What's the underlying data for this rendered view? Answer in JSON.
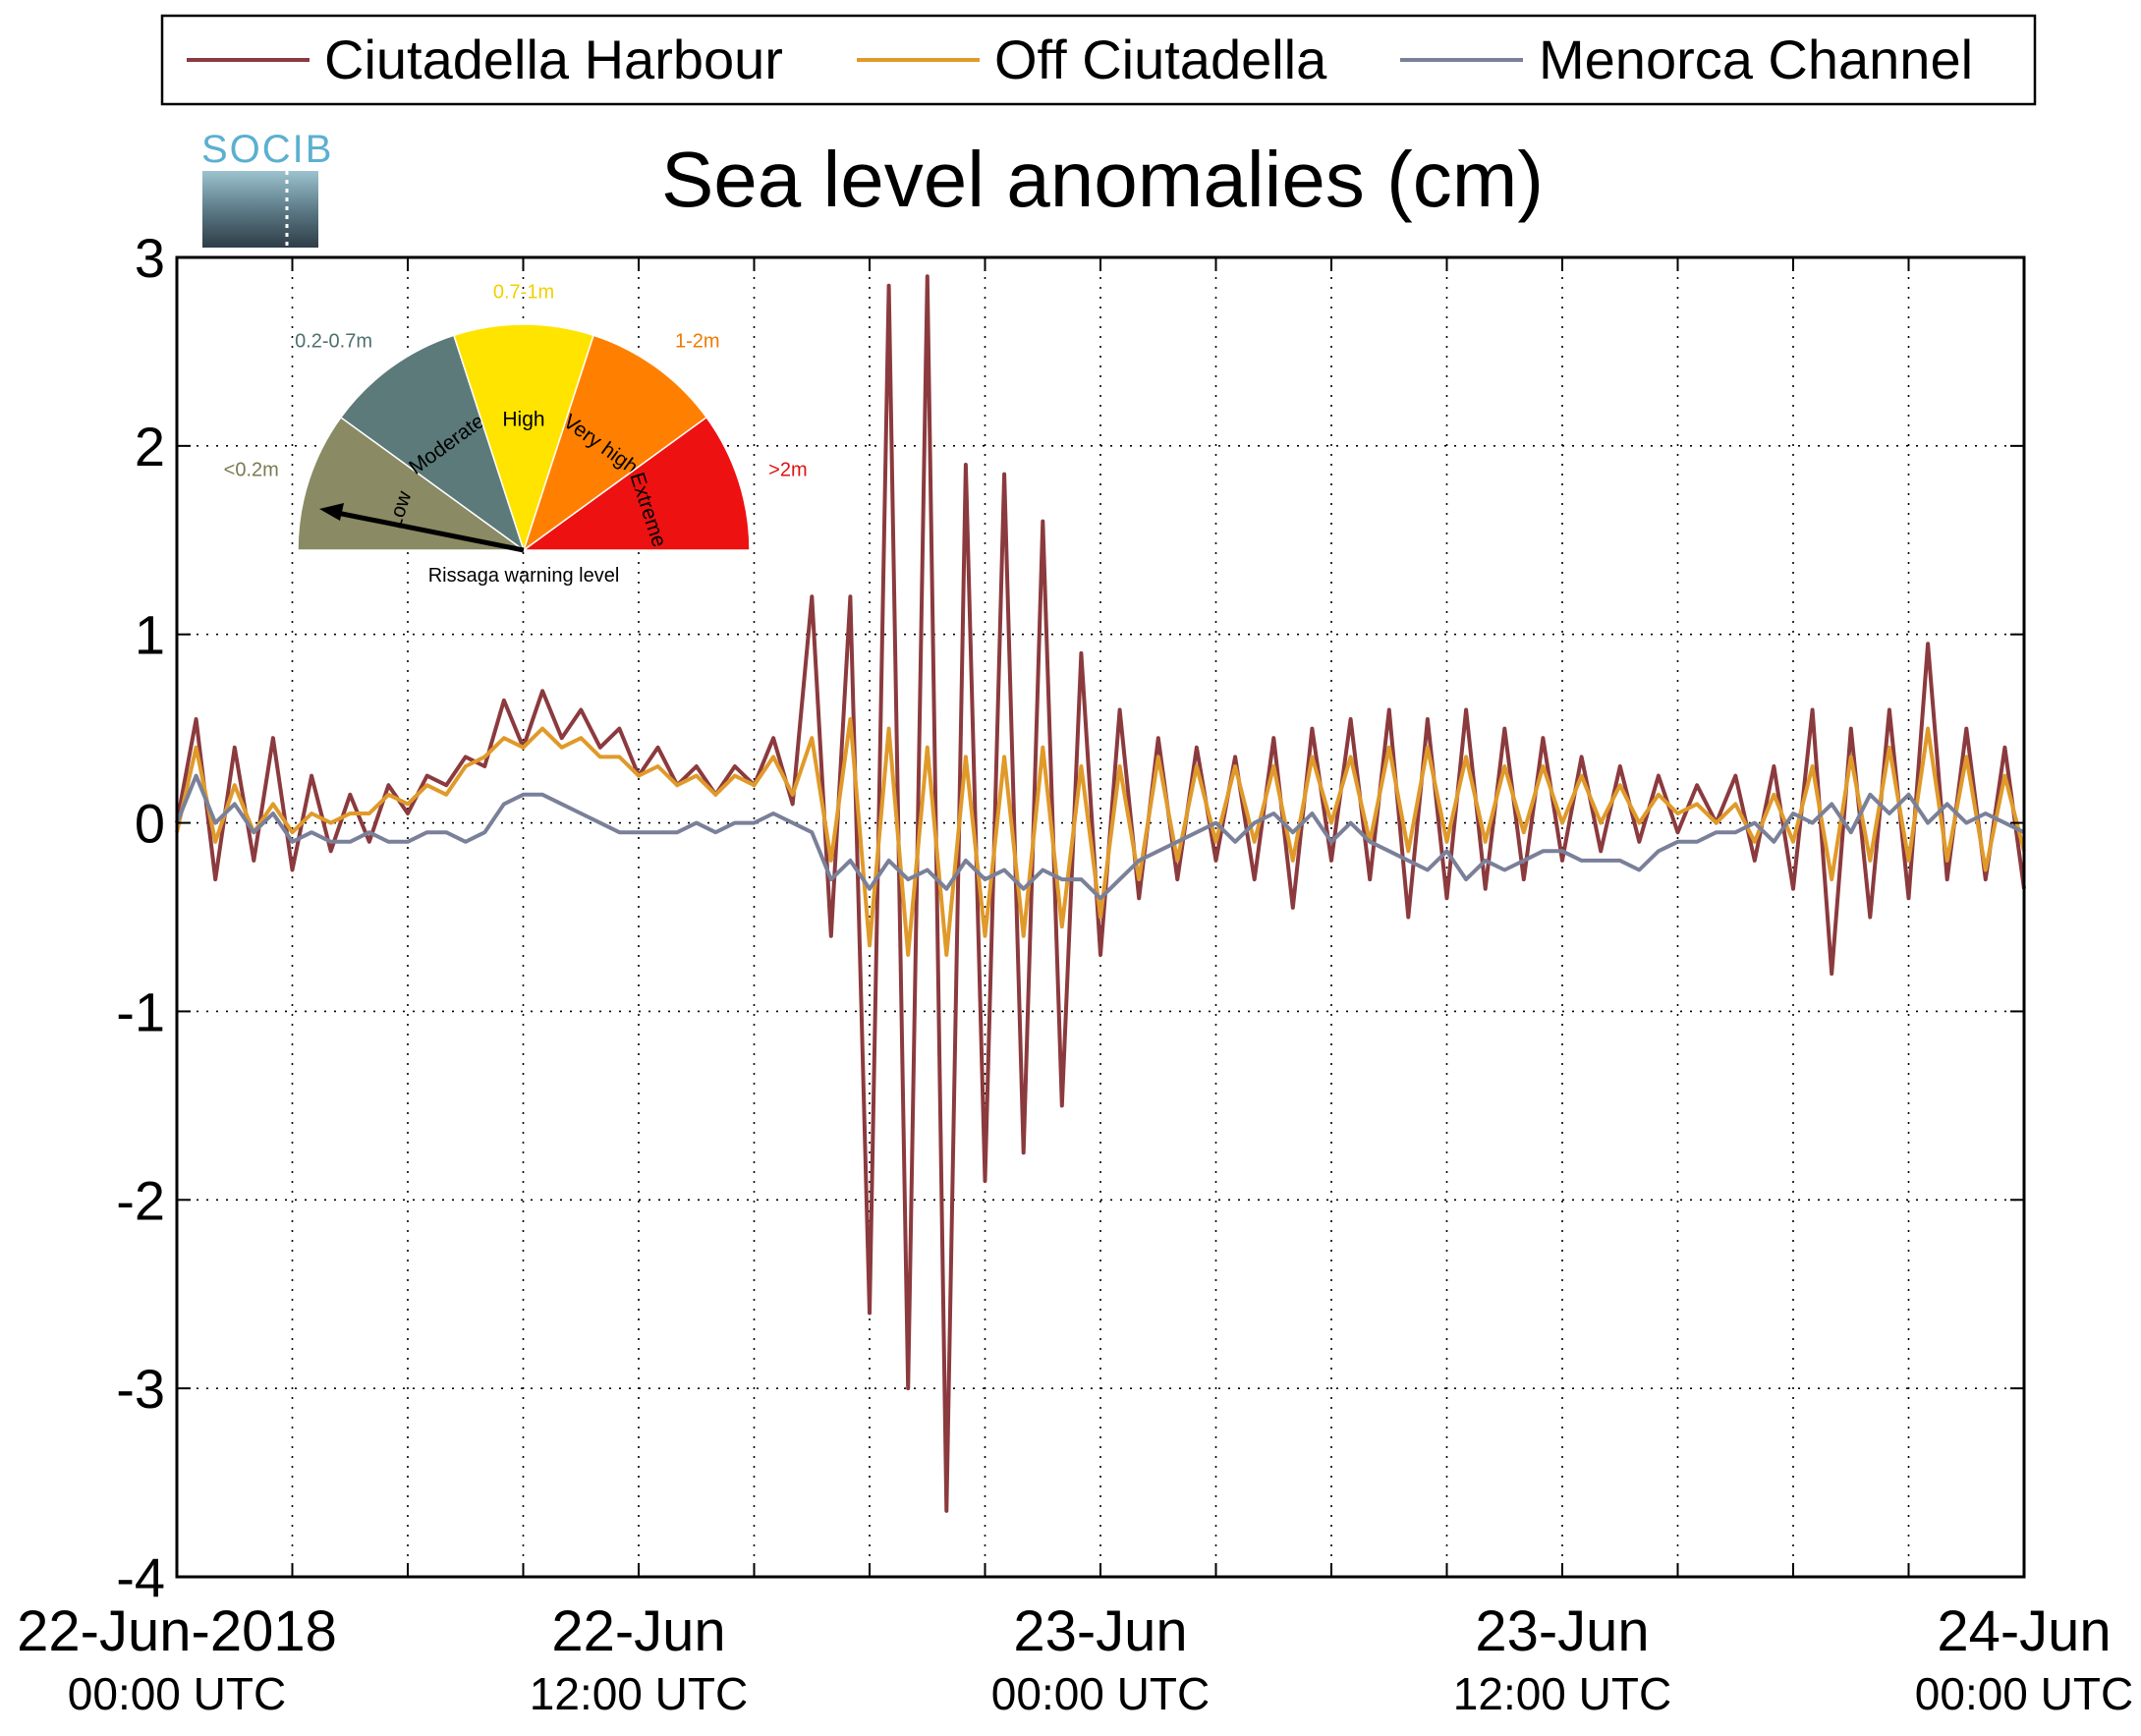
{
  "chart_data": {
    "type": "line",
    "title": "Sea level anomalies (cm)",
    "xlabel": "",
    "ylabel": "",
    "ylim": [
      -4,
      3
    ],
    "yticks": [
      3,
      2,
      1,
      0,
      -1,
      -2,
      -3,
      -4
    ],
    "ytick_labels": [
      "3",
      "2",
      "1",
      "0",
      "-1",
      "-2",
      "-3",
      "-4"
    ],
    "x_unit": "hours since 22-Jun-2018 00:00 UTC",
    "xlim": [
      0,
      48
    ],
    "xticks": [
      0,
      3,
      6,
      9,
      12,
      15,
      18,
      21,
      24,
      27,
      30,
      33,
      36,
      39,
      42,
      45,
      48
    ],
    "xtick_labels": [
      {
        "x": 0,
        "date": "22-Jun-2018",
        "time": "00:00 UTC"
      },
      {
        "x": 12,
        "date": "22-Jun",
        "time": "12:00 UTC"
      },
      {
        "x": 24,
        "date": "23-Jun",
        "time": "00:00 UTC"
      },
      {
        "x": 36,
        "date": "23-Jun",
        "time": "12:00 UTC"
      },
      {
        "x": 48,
        "date": "24-Jun",
        "time": "00:00 UTC"
      }
    ],
    "grid": true,
    "legend_position": "top",
    "series": [
      {
        "name": "Ciutadella Harbour",
        "color": "#8b3a3e",
        "x": [
          0,
          0.5,
          1,
          1.5,
          2,
          2.5,
          3,
          3.5,
          4,
          4.5,
          5,
          5.5,
          6,
          6.5,
          7,
          7.5,
          8,
          8.5,
          9,
          9.5,
          10,
          10.5,
          11,
          11.5,
          12,
          12.5,
          13,
          13.5,
          14,
          14.5,
          15,
          15.5,
          16,
          16.5,
          17,
          17.5,
          18,
          18.5,
          19,
          19.5,
          20,
          20.5,
          21,
          21.5,
          22,
          22.5,
          23,
          23.5,
          24,
          24.5,
          25,
          25.5,
          26,
          26.5,
          27,
          27.5,
          28,
          28.5,
          29,
          29.5,
          30,
          30.5,
          31,
          31.5,
          32,
          32.5,
          33,
          33.5,
          34,
          34.5,
          35,
          35.5,
          36,
          36.5,
          37,
          37.5,
          38,
          38.5,
          39,
          39.5,
          40,
          40.5,
          41,
          41.5,
          42,
          42.5,
          43,
          43.5,
          44,
          44.5,
          45,
          45.5,
          46,
          46.5,
          47,
          47.5,
          48
        ],
        "values": [
          0.0,
          0.55,
          -0.3,
          0.4,
          -0.2,
          0.45,
          -0.25,
          0.25,
          -0.15,
          0.15,
          -0.1,
          0.2,
          0.05,
          0.25,
          0.2,
          0.35,
          0.3,
          0.65,
          0.4,
          0.7,
          0.45,
          0.6,
          0.4,
          0.5,
          0.25,
          0.4,
          0.2,
          0.3,
          0.15,
          0.3,
          0.2,
          0.45,
          0.1,
          1.2,
          -0.6,
          1.2,
          -2.6,
          2.85,
          -3.0,
          2.9,
          -3.65,
          1.9,
          -1.9,
          1.85,
          -1.75,
          1.6,
          -1.5,
          0.9,
          -0.7,
          0.6,
          -0.4,
          0.45,
          -0.3,
          0.4,
          -0.2,
          0.35,
          -0.3,
          0.45,
          -0.45,
          0.5,
          -0.2,
          0.55,
          -0.3,
          0.6,
          -0.5,
          0.55,
          -0.4,
          0.6,
          -0.35,
          0.5,
          -0.3,
          0.45,
          -0.2,
          0.35,
          -0.15,
          0.3,
          -0.1,
          0.25,
          -0.05,
          0.2,
          0.0,
          0.25,
          -0.2,
          0.3,
          -0.35,
          0.6,
          -0.8,
          0.5,
          -0.5,
          0.6,
          -0.4,
          0.95,
          -0.3,
          0.5,
          -0.3,
          0.4,
          -0.35
        ]
      },
      {
        "name": "Off Ciutadella",
        "color": "#e09a2a",
        "x": [
          0,
          0.5,
          1,
          1.5,
          2,
          2.5,
          3,
          3.5,
          4,
          4.5,
          5,
          5.5,
          6,
          6.5,
          7,
          7.5,
          8,
          8.5,
          9,
          9.5,
          10,
          10.5,
          11,
          11.5,
          12,
          12.5,
          13,
          13.5,
          14,
          14.5,
          15,
          15.5,
          16,
          16.5,
          17,
          17.5,
          18,
          18.5,
          19,
          19.5,
          20,
          20.5,
          21,
          21.5,
          22,
          22.5,
          23,
          23.5,
          24,
          24.5,
          25,
          25.5,
          26,
          26.5,
          27,
          27.5,
          28,
          28.5,
          29,
          29.5,
          30,
          30.5,
          31,
          31.5,
          32,
          32.5,
          33,
          33.5,
          34,
          34.5,
          35,
          35.5,
          36,
          36.5,
          37,
          37.5,
          38,
          38.5,
          39,
          39.5,
          40,
          40.5,
          41,
          41.5,
          42,
          42.5,
          43,
          43.5,
          44,
          44.5,
          45,
          45.5,
          46,
          46.5,
          47,
          47.5,
          48
        ],
        "values": [
          -0.05,
          0.4,
          -0.1,
          0.2,
          -0.05,
          0.1,
          -0.05,
          0.05,
          0.0,
          0.05,
          0.05,
          0.15,
          0.1,
          0.2,
          0.15,
          0.3,
          0.35,
          0.45,
          0.4,
          0.5,
          0.4,
          0.45,
          0.35,
          0.35,
          0.25,
          0.3,
          0.2,
          0.25,
          0.15,
          0.25,
          0.2,
          0.35,
          0.15,
          0.45,
          -0.2,
          0.55,
          -0.65,
          0.5,
          -0.7,
          0.4,
          -0.7,
          0.35,
          -0.6,
          0.35,
          -0.6,
          0.4,
          -0.55,
          0.3,
          -0.5,
          0.3,
          -0.3,
          0.35,
          -0.2,
          0.3,
          -0.1,
          0.3,
          -0.1,
          0.3,
          -0.2,
          0.35,
          0.0,
          0.35,
          -0.1,
          0.4,
          -0.15,
          0.4,
          -0.1,
          0.35,
          -0.1,
          0.3,
          -0.05,
          0.3,
          0.0,
          0.25,
          0.0,
          0.2,
          0.0,
          0.15,
          0.05,
          0.1,
          0.0,
          0.1,
          -0.1,
          0.15,
          -0.1,
          0.3,
          -0.3,
          0.35,
          -0.2,
          0.4,
          -0.2,
          0.5,
          -0.2,
          0.35,
          -0.25,
          0.25,
          -0.15
        ]
      },
      {
        "name": "Menorca Channel",
        "color": "#7a8099",
        "x": [
          0,
          0.5,
          1,
          1.5,
          2,
          2.5,
          3,
          3.5,
          4,
          4.5,
          5,
          5.5,
          6,
          6.5,
          7,
          7.5,
          8,
          8.5,
          9,
          9.5,
          10,
          10.5,
          11,
          11.5,
          12,
          12.5,
          13,
          13.5,
          14,
          14.5,
          15,
          15.5,
          16,
          16.5,
          17,
          17.5,
          18,
          18.5,
          19,
          19.5,
          20,
          20.5,
          21,
          21.5,
          22,
          22.5,
          23,
          23.5,
          24,
          24.5,
          25,
          25.5,
          26,
          26.5,
          27,
          27.5,
          28,
          28.5,
          29,
          29.5,
          30,
          30.5,
          31,
          31.5,
          32,
          32.5,
          33,
          33.5,
          34,
          34.5,
          35,
          35.5,
          36,
          36.5,
          37,
          37.5,
          38,
          38.5,
          39,
          39.5,
          40,
          40.5,
          41,
          41.5,
          42,
          42.5,
          43,
          43.5,
          44,
          44.5,
          45,
          45.5,
          46,
          46.5,
          47,
          47.5,
          48
        ],
        "values": [
          0.0,
          0.25,
          0.0,
          0.1,
          -0.05,
          0.05,
          -0.1,
          -0.05,
          -0.1,
          -0.1,
          -0.05,
          -0.1,
          -0.1,
          -0.05,
          -0.05,
          -0.1,
          -0.05,
          0.1,
          0.15,
          0.15,
          0.1,
          0.05,
          0.0,
          -0.05,
          -0.05,
          -0.05,
          -0.05,
          0.0,
          -0.05,
          0.0,
          0.0,
          0.05,
          0.0,
          -0.05,
          -0.3,
          -0.2,
          -0.35,
          -0.2,
          -0.3,
          -0.25,
          -0.35,
          -0.2,
          -0.3,
          -0.25,
          -0.35,
          -0.25,
          -0.3,
          -0.3,
          -0.4,
          -0.3,
          -0.2,
          -0.15,
          -0.1,
          -0.05,
          0.0,
          -0.1,
          0.0,
          0.05,
          -0.05,
          0.05,
          -0.1,
          0.0,
          -0.1,
          -0.15,
          -0.2,
          -0.25,
          -0.15,
          -0.3,
          -0.2,
          -0.25,
          -0.2,
          -0.15,
          -0.15,
          -0.2,
          -0.2,
          -0.2,
          -0.25,
          -0.15,
          -0.1,
          -0.1,
          -0.05,
          -0.05,
          0.0,
          -0.1,
          0.05,
          0.0,
          0.1,
          -0.05,
          0.15,
          0.05,
          0.15,
          0.0,
          0.1,
          0.0,
          0.05,
          0.0,
          -0.05
        ]
      }
    ]
  },
  "logo": {
    "text": "SOCIB"
  },
  "gauge": {
    "title": "Rissaga warning level",
    "segments": [
      {
        "name": "Low",
        "range": "<0.2m",
        "color": "#8a8a64",
        "range_color": "#7a7a52"
      },
      {
        "name": "Moderate",
        "range": "0.2-0.7m",
        "color": "#5c7a7a",
        "range_color": "#4f6f6f"
      },
      {
        "name": "High",
        "range": "0.7-1m",
        "color": "#ffe400",
        "range_color": "#f2d000"
      },
      {
        "name": "Very high",
        "range": "1-2m",
        "color": "#ff8000",
        "range_color": "#f07a00"
      },
      {
        "name": "Extreme",
        "range": ">2m",
        "color": "#ee1111",
        "range_color": "#e01010"
      }
    ],
    "needle_level": "Low"
  }
}
